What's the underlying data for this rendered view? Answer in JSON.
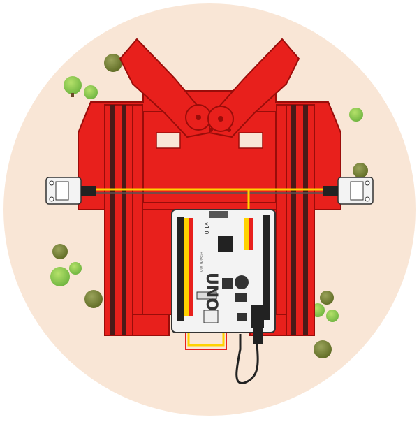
{
  "board": {
    "model": "UNO",
    "version": "v1.0",
    "brand": "Freeduino"
  },
  "colors": {
    "background_disc": "#f9e6d6",
    "chassis_red": "#e8201c",
    "chassis_dark": "#9a0d0a",
    "board_white": "#f3f3f3",
    "wire_yellow": "#ffd200",
    "pcb_outline": "#333333",
    "tree_light": "#8dc63f",
    "tree_dark": "#6b7a2a"
  },
  "icons": [
    "claw-icon",
    "gear-icon",
    "sensor-module-icon",
    "arduino-board-icon",
    "tree-icon",
    "usb-cable-icon"
  ]
}
